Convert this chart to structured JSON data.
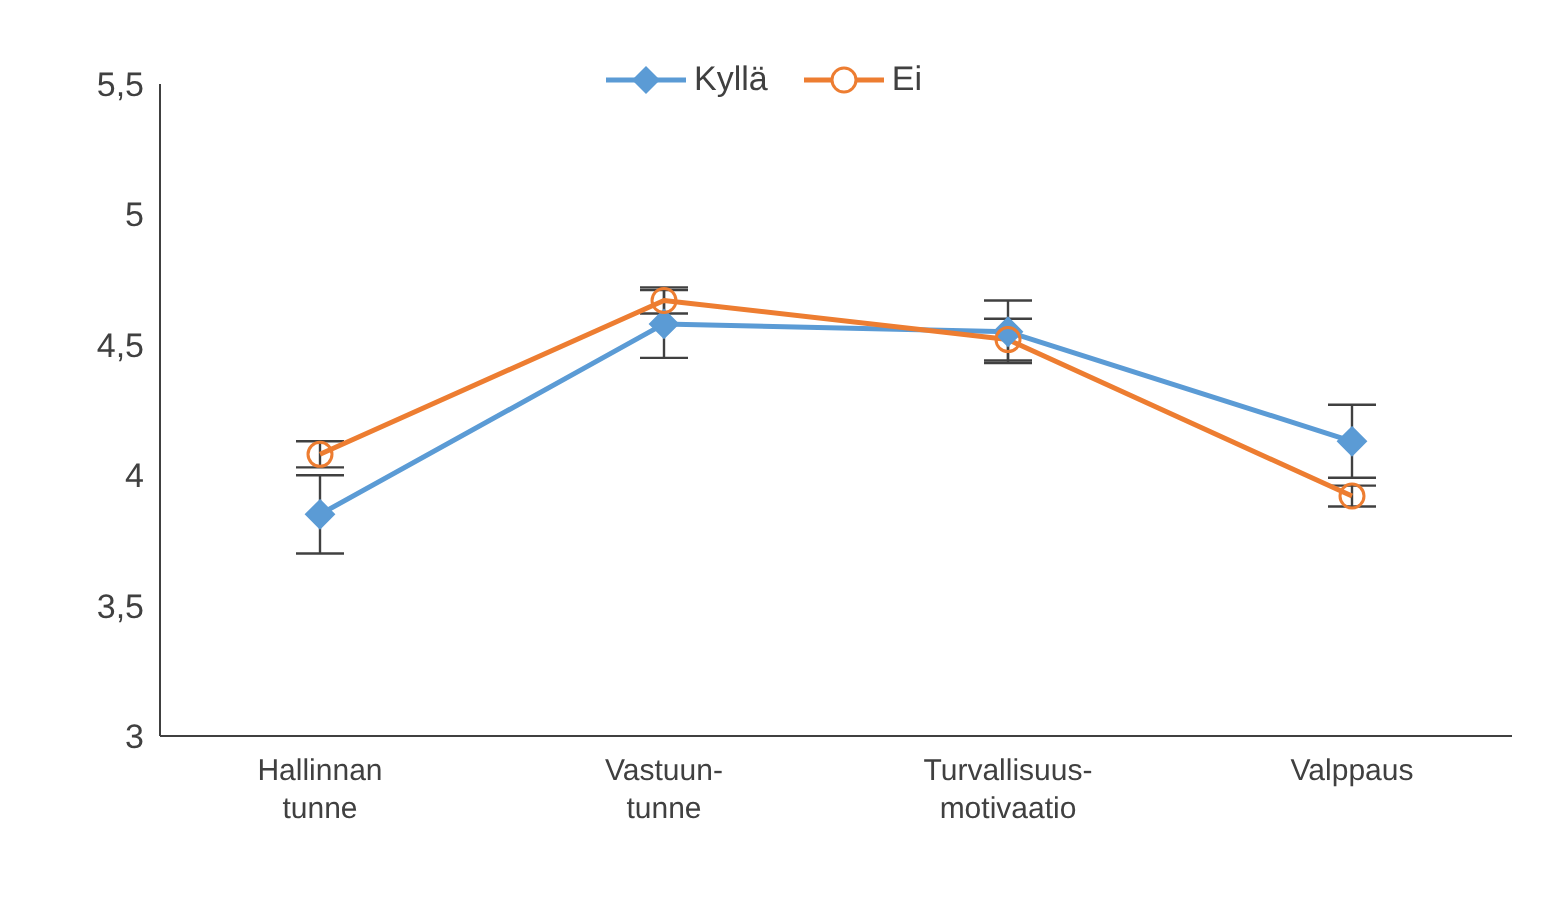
{
  "chart_data": {
    "type": "line",
    "categories": [
      "Hallinnan\ntunne",
      "Vastuun-\ntunne",
      "Turvallisuus-\nmotivaatio",
      "Valppaus"
    ],
    "series": [
      {
        "name": "Kyllä",
        "color": "#5b9bd5",
        "marker": "diamond",
        "values": [
          3.85,
          4.58,
          4.55,
          4.13
        ],
        "errors": [
          0.15,
          0.13,
          0.12,
          0.14
        ]
      },
      {
        "name": "Ei",
        "color": "#ed7d31",
        "marker": "circle",
        "values": [
          4.08,
          4.67,
          4.52,
          3.92
        ],
        "errors": [
          0.05,
          0.05,
          0.08,
          0.04
        ]
      }
    ],
    "ylim": [
      3,
      5.5
    ],
    "yticks": [
      3,
      {
        "value": 3.5,
        "label": "3,5"
      },
      4,
      {
        "value": 4.5,
        "label": "4,5"
      },
      5,
      {
        "value": 5.5,
        "label": "5,5"
      }
    ],
    "grid": false,
    "legend": "top"
  }
}
